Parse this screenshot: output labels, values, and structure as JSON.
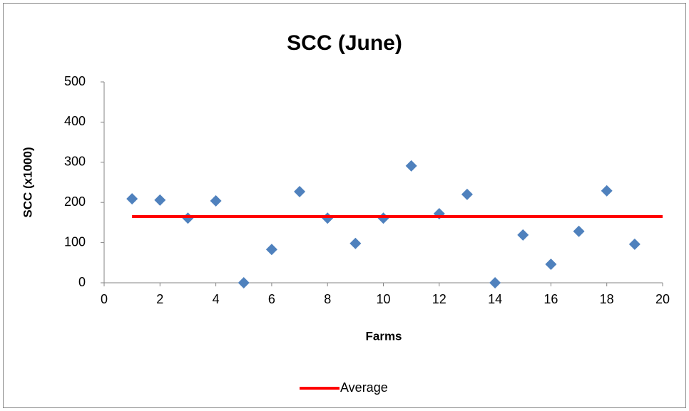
{
  "chart_data": {
    "type": "scatter",
    "title": "SCC (June)",
    "x_label": "Farms",
    "y_label": "SCC (x1000)",
    "series": [
      {
        "color": "#4f81bd",
        "marker": "diamond",
        "x": [
          1,
          2,
          3,
          4,
          5,
          6,
          7,
          8,
          9,
          10,
          11,
          12,
          13,
          14,
          15,
          16,
          17,
          18,
          19
        ],
        "values": [
          209,
          206,
          161,
          204,
          0,
          83,
          227,
          161,
          98,
          161,
          291,
          172,
          220,
          0,
          119,
          46,
          128,
          229,
          96
        ]
      },
      {
        "name": "Average",
        "color": "#ff0000",
        "line": true,
        "x": [
          1,
          20
        ],
        "values": [
          165,
          165
        ]
      }
    ],
    "xlim": [
      0,
      20
    ],
    "xticks": [
      0,
      2,
      4,
      6,
      8,
      10,
      12,
      14,
      16,
      18,
      20
    ],
    "ylim": [
      0,
      500
    ],
    "yticks": [
      0,
      100,
      200,
      300,
      400,
      500
    ],
    "grid": false,
    "legend": "bottom"
  }
}
